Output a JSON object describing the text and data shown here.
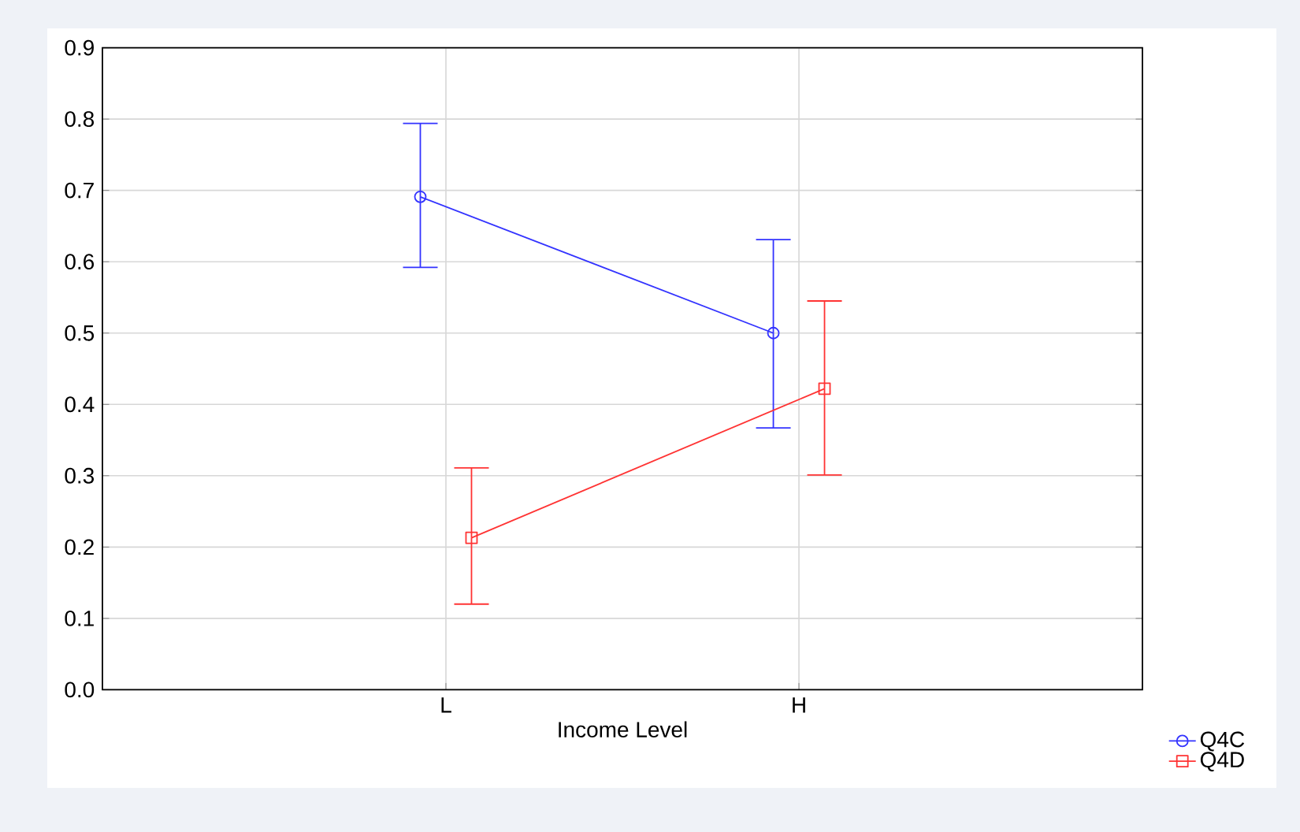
{
  "chart_data": {
    "type": "line",
    "xlabel": "Income Level",
    "categories": [
      "L",
      "H"
    ],
    "series": [
      {
        "name": "Q4C",
        "color": "#3333ff",
        "marker": "circle",
        "values": [
          0.691,
          0.5
        ],
        "errors": [
          [
            0.592,
            0.794
          ],
          [
            0.367,
            0.631
          ]
        ]
      },
      {
        "name": "Q4D",
        "color": "#ff3333",
        "marker": "square",
        "values": [
          0.213,
          0.422
        ],
        "errors": [
          [
            0.12,
            0.311
          ],
          [
            0.301,
            0.545
          ]
        ]
      }
    ],
    "ylim": [
      0,
      0.9
    ],
    "yticks": [
      {
        "value": 0,
        "label": "0.0"
      },
      0.1,
      0.2,
      0.3,
      0.4,
      0.5,
      0.6,
      0.7,
      0.8,
      0.9
    ],
    "grid": true,
    "legend": "bottom right",
    "line_style": "solid"
  }
}
